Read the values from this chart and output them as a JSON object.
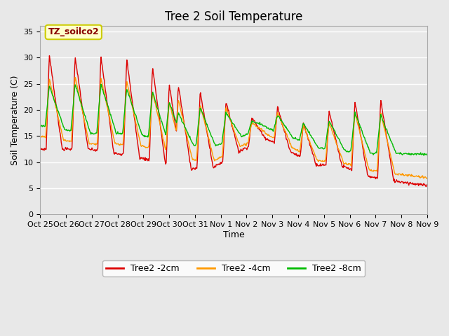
{
  "title": "Tree 2 Soil Temperature",
  "xlabel": "Time",
  "ylabel": "Soil Temperature (C)",
  "ylim": [
    0,
    36
  ],
  "yticks": [
    0,
    5,
    10,
    15,
    20,
    25,
    30,
    35
  ],
  "legend_label": "TZ_soilco2",
  "series_labels": [
    "Tree2 -2cm",
    "Tree2 -4cm",
    "Tree2 -8cm"
  ],
  "series_colors": [
    "#dd0000",
    "#ff9900",
    "#00bb00"
  ],
  "x_tick_labels": [
    "Oct 25",
    "Oct 26",
    "Oct 27",
    "Oct 28",
    "Oct 29",
    "Oct 30",
    "Oct 31",
    "Nov 1",
    "Nov 2",
    "Nov 3",
    "Nov 4",
    "Nov 5",
    "Nov 6",
    "Nov 7",
    "Nov 8",
    "Nov 9"
  ],
  "plot_bg_color": "#e8e8e8",
  "fig_bg_color": "#e8e8e8",
  "grid_color": "#ffffff",
  "title_fontsize": 12,
  "label_fontsize": 9,
  "tick_fontsize": 8,
  "n_days": 15,
  "pts_per_day": 48,
  "peak_days": [
    0.35,
    1.35,
    2.35,
    3.35,
    4.35,
    5.0,
    5.35,
    6.2,
    7.2,
    8.2,
    9.2,
    10.2,
    11.2,
    12.2,
    13.2
  ],
  "red_peaks": [
    30.5,
    30.3,
    30.3,
    29.8,
    28.3,
    25.0,
    24.8,
    23.5,
    21.5,
    18.5,
    20.5,
    17.5,
    19.8,
    21.5,
    22.0
  ],
  "red_troughs": [
    12.5,
    12.5,
    12.5,
    11.2,
    10.5,
    9.5,
    8.5,
    9.0,
    9.0,
    15.0,
    14.5,
    9.5,
    9.5,
    9.0,
    5.5
  ],
  "orange_peaks": [
    26.0,
    26.5,
    26.2,
    25.5,
    23.5,
    21.5,
    22.0,
    21.0,
    20.5,
    17.5,
    19.5,
    17.0,
    17.5,
    19.5,
    19.5
  ],
  "orange_troughs": [
    15.0,
    13.5,
    13.5,
    13.5,
    13.0,
    11.0,
    10.5,
    10.5,
    10.0,
    15.5,
    15.5,
    10.5,
    10.0,
    10.0,
    7.0
  ],
  "green_peaks": [
    24.5,
    25.0,
    25.0,
    24.0,
    23.5,
    21.5,
    19.5,
    20.5,
    19.5,
    17.8,
    19.0,
    17.5,
    18.0,
    19.5,
    19.0
  ],
  "green_troughs": [
    17.0,
    15.5,
    15.5,
    15.5,
    15.0,
    13.5,
    13.5,
    13.0,
    13.0,
    16.5,
    16.8,
    13.0,
    12.5,
    12.0,
    11.5
  ]
}
